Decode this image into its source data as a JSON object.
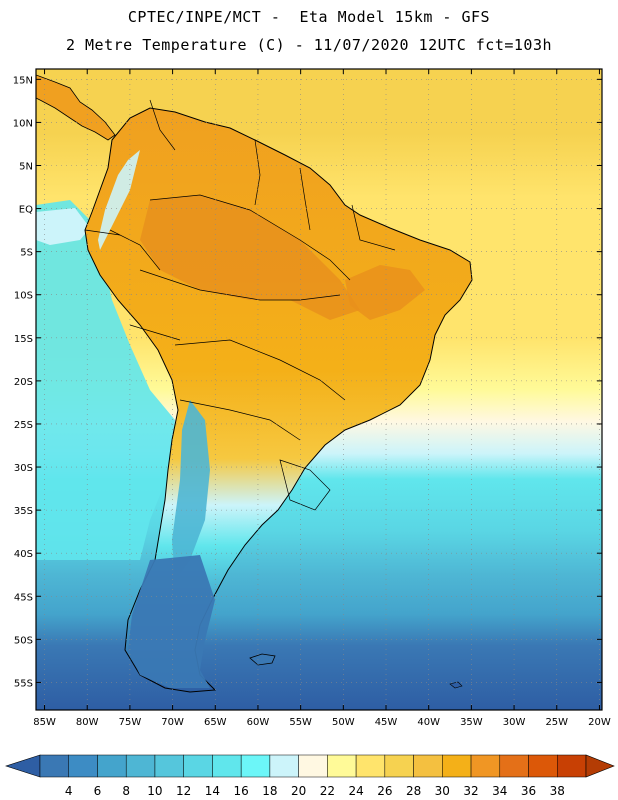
{
  "header": {
    "title_line1": "CPTEC/INPE/MCT -  Eta Model 15km - GFS",
    "title_line2": "2 Metre Temperature (C) - 11/07/2020 12UTC fct=103h"
  },
  "axes": {
    "lat_labels": [
      "15N",
      "10N",
      "5N",
      "EQ",
      "5S",
      "10S",
      "15S",
      "20S",
      "25S",
      "30S",
      "35S",
      "40S",
      "45S",
      "50S",
      "55S"
    ],
    "lat_values": [
      15,
      10,
      5,
      0,
      -5,
      -10,
      -15,
      -20,
      -25,
      -30,
      -35,
      -40,
      -45,
      -50,
      -55
    ],
    "lon_labels": [
      "85W",
      "80W",
      "75W",
      "70W",
      "65W",
      "60W",
      "55W",
      "50W",
      "45W",
      "40W",
      "35W",
      "30W",
      "25W",
      "20W"
    ],
    "lon_values": [
      -85,
      -80,
      -75,
      -70,
      -65,
      -60,
      -55,
      -50,
      -45,
      -40,
      -35,
      -30,
      -25,
      -20
    ]
  },
  "colorbar": {
    "labels": [
      "4",
      "6",
      "8",
      "10",
      "12",
      "14",
      "16",
      "18",
      "20",
      "22",
      "24",
      "26",
      "28",
      "30",
      "32",
      "34",
      "36",
      "38"
    ],
    "colors": [
      "#3a78b4",
      "#3d8cc4",
      "#44a4cc",
      "#4eb6d4",
      "#55c6dc",
      "#5ad6e4",
      "#60e6ec",
      "#6cf6f8",
      "#ccf4fa",
      "#fff8e2",
      "#fffa98",
      "#ffe46c",
      "#f6d250",
      "#f4c040",
      "#f4b018",
      "#f09624",
      "#e47018",
      "#dc5808",
      "#c84004"
    ],
    "below_color": "#2e5ea4",
    "above_color": "#b43c04"
  },
  "colors": {
    "ocean_north": "#f6d250",
    "ocean_mid": "#ffe46c",
    "ocean_south": "#3a78b4",
    "land_warm": "#f4b018"
  }
}
